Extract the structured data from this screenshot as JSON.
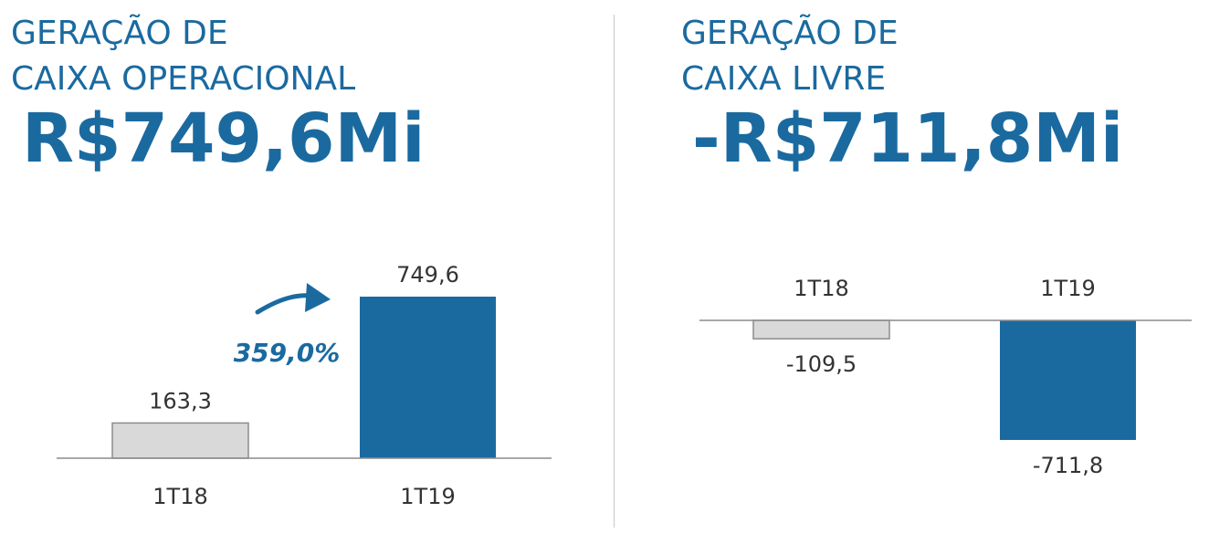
{
  "colors": {
    "accent": "#1a6aa0",
    "neutral_bar": "#d9d9d9",
    "axis": "#8c8c8c"
  },
  "left": {
    "title_line1": "GERAÇÃO DE",
    "title_line2": "CAIXA OPERACIONAL",
    "headline": "R$749,6Mi",
    "growth_label": "359,0%",
    "growth_icon": "curved-arrow-icon"
  },
  "right": {
    "title_line1": "GERAÇÃO DE",
    "title_line2": "CAIXA LIVRE",
    "headline": "-R$711,8Mi"
  },
  "chart_data": [
    {
      "type": "bar",
      "categories": [
        "1T18",
        "1T19"
      ],
      "values": [
        163.3,
        749.6
      ],
      "value_labels": [
        "163,3",
        "749,6"
      ],
      "ylim": [
        0,
        800
      ],
      "grid": false,
      "legend": "none"
    },
    {
      "type": "bar",
      "categories": [
        "1T18",
        "1T19"
      ],
      "values": [
        -109.5,
        -711.8
      ],
      "value_labels": [
        "-109,5",
        "-711,8"
      ],
      "ylim": [
        -800,
        0
      ],
      "grid": false,
      "legend": "none"
    }
  ]
}
